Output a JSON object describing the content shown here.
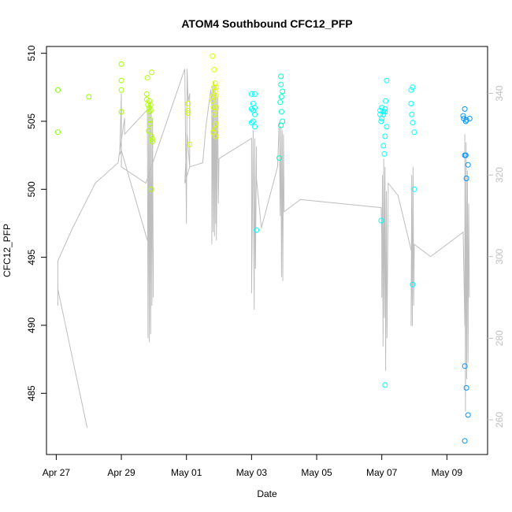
{
  "chart_data": {
    "type": "scatter",
    "title": "ATOM4 Southbound CFC12_PFP",
    "xlabel": "Date",
    "ylabel": "CFC12_PFP",
    "x_tick_labels": [
      "Apr 27",
      "Apr 29",
      "May 01",
      "May 03",
      "May 05",
      "May 07",
      "May 09"
    ],
    "x_tick_days": [
      0,
      2,
      4,
      6,
      8,
      10,
      12
    ],
    "xlim_days": [
      -0.3,
      13.25
    ],
    "y_ticks": [
      485,
      490,
      495,
      500,
      505,
      510
    ],
    "ylim": [
      480.5,
      510.5
    ],
    "y2_ticks": [
      260,
      280,
      300,
      320,
      340
    ],
    "y2lim": [
      251.5,
      351.5
    ],
    "grid": false,
    "legend": "none",
    "series": [
      {
        "kind": "points",
        "points": [
          [
            0.05,
            507.3,
            0.25
          ],
          [
            0.05,
            504.2,
            0.25
          ],
          [
            1.0,
            506.8,
            0.24
          ],
          [
            2.0,
            509.2,
            0.23
          ],
          [
            2.0,
            508.0,
            0.23
          ],
          [
            2.0,
            507.3,
            0.23
          ],
          [
            2.0,
            505.7,
            0.23
          ],
          [
            2.8,
            508.2,
            0.22
          ],
          [
            2.78,
            507.0,
            0.22
          ],
          [
            2.78,
            506.6,
            0.22
          ],
          [
            2.82,
            506.2,
            0.22
          ],
          [
            2.86,
            506.5,
            0.22
          ],
          [
            2.86,
            506.0,
            0.22
          ],
          [
            2.86,
            505.7,
            0.22
          ],
          [
            2.88,
            505.1,
            0.22
          ],
          [
            2.88,
            504.8,
            0.22
          ],
          [
            2.84,
            504.3,
            0.22
          ],
          [
            2.92,
            503.9,
            0.22
          ],
          [
            2.95,
            503.7,
            0.22
          ],
          [
            2.95,
            503.5,
            0.22
          ],
          [
            2.92,
            500.0,
            0.22
          ],
          [
            2.93,
            508.6,
            0.22
          ],
          [
            2.9,
            506.2,
            0.22
          ],
          [
            2.9,
            505.8,
            0.22
          ],
          [
            4.05,
            506.3,
            0.2
          ],
          [
            4.05,
            505.8,
            0.2
          ],
          [
            4.05,
            505.6,
            0.2
          ],
          [
            4.1,
            503.3,
            0.2
          ],
          [
            4.8,
            509.8,
            0.19
          ],
          [
            4.85,
            508.8,
            0.19
          ],
          [
            4.88,
            507.8,
            0.19
          ],
          [
            4.85,
            507.5,
            0.19
          ],
          [
            4.88,
            507.2,
            0.19
          ],
          [
            4.8,
            506.8,
            0.19
          ],
          [
            4.8,
            506.5,
            0.19
          ],
          [
            4.9,
            506.9,
            0.19
          ],
          [
            4.92,
            507.5,
            0.19
          ],
          [
            4.84,
            506.0,
            0.19
          ],
          [
            4.86,
            505.5,
            0.19
          ],
          [
            4.9,
            504.8,
            0.19
          ],
          [
            4.88,
            504.4,
            0.19
          ],
          [
            4.82,
            504.2,
            0.19
          ],
          [
            4.9,
            503.9,
            0.19
          ],
          [
            4.92,
            506.0,
            0.19
          ],
          [
            6.0,
            507.0,
            0.5
          ],
          [
            6.1,
            507.0,
            0.5
          ],
          [
            6.05,
            506.3,
            0.5
          ],
          [
            6.1,
            506.0,
            0.5
          ],
          [
            6.0,
            505.9,
            0.5
          ],
          [
            6.05,
            505.8,
            0.5
          ],
          [
            6.1,
            505.5,
            0.5
          ],
          [
            6.05,
            505.0,
            0.5
          ],
          [
            6.0,
            504.9,
            0.5
          ],
          [
            6.1,
            504.6,
            0.5
          ],
          [
            6.15,
            497.0,
            0.5
          ],
          [
            6.9,
            508.3,
            0.47
          ],
          [
            6.9,
            507.7,
            0.47
          ],
          [
            6.95,
            507.2,
            0.47
          ],
          [
            6.92,
            506.8,
            0.47
          ],
          [
            6.88,
            506.4,
            0.47
          ],
          [
            6.92,
            505.7,
            0.47
          ],
          [
            6.95,
            505.0,
            0.47
          ],
          [
            6.9,
            504.7,
            0.47
          ],
          [
            6.85,
            502.3,
            0.47
          ],
          [
            10.95,
            507.5,
            0.5
          ],
          [
            10.9,
            507.3,
            0.5
          ],
          [
            10.9,
            506.3,
            0.5
          ],
          [
            10.92,
            505.5,
            0.5
          ],
          [
            10.95,
            504.9,
            0.5
          ],
          [
            11.0,
            504.2,
            0.5
          ],
          [
            11.0,
            500.0,
            0.5
          ],
          [
            10.95,
            493.0,
            0.5
          ],
          [
            10.0,
            506.0,
            0.5
          ],
          [
            9.95,
            505.8,
            0.5
          ],
          [
            10.1,
            505.7,
            0.5
          ],
          [
            10.05,
            505.5,
            0.5
          ],
          [
            10.0,
            505.2,
            0.5
          ],
          [
            9.98,
            505.0,
            0.5
          ],
          [
            9.95,
            505.5,
            0.5
          ],
          [
            10.1,
            505.9,
            0.5
          ],
          [
            10.05,
            505.7,
            0.5
          ],
          [
            10.15,
            504.6,
            0.5
          ],
          [
            10.1,
            503.9,
            0.5
          ],
          [
            10.05,
            503.2,
            0.5
          ],
          [
            10.08,
            502.6,
            0.5
          ],
          [
            10.12,
            506.5,
            0.5
          ],
          [
            10.15,
            508.0,
            0.5
          ],
          [
            9.98,
            497.7,
            0.5
          ],
          [
            10.1,
            485.6,
            0.5
          ],
          [
            12.55,
            505.9,
            0.57
          ],
          [
            12.5,
            505.4,
            0.57
          ],
          [
            12.52,
            505.2,
            0.57
          ],
          [
            12.58,
            505.0,
            0.57
          ],
          [
            12.7,
            505.2,
            0.57
          ],
          [
            12.6,
            505.1,
            0.57
          ],
          [
            12.55,
            502.5,
            0.57
          ],
          [
            12.58,
            502.5,
            0.57
          ],
          [
            12.65,
            501.8,
            0.57
          ],
          [
            12.6,
            500.8,
            0.57
          ],
          [
            12.55,
            487.0,
            0.57
          ],
          [
            12.6,
            485.4,
            0.57
          ],
          [
            12.65,
            483.4,
            0.57
          ],
          [
            12.55,
            481.5,
            0.57
          ]
        ]
      },
      {
        "kind": "line",
        "axis": "right",
        "color": "#bebebe",
        "points": [
          [
            0.95,
            258
          ],
          [
            0.5,
            275
          ],
          [
            0.05,
            292
          ],
          [
            0.05,
            288
          ],
          [
            0.05,
            299
          ],
          [
            0.5,
            307
          ],
          [
            1.2,
            318
          ],
          [
            1.9,
            323
          ],
          [
            2.1,
            334
          ],
          [
            2.1,
            330
          ],
          [
            2.8,
            336
          ],
          [
            2.8,
            336
          ],
          [
            2.82,
            280
          ],
          [
            2.84,
            337
          ],
          [
            2.86,
            279
          ],
          [
            2.88,
            338
          ],
          [
            2.9,
            281
          ],
          [
            2.92,
            336
          ],
          [
            2.94,
            288
          ],
          [
            2.96,
            334
          ],
          [
            2.98,
            290
          ],
          [
            2.98,
            302
          ],
          [
            2.8,
            304
          ],
          [
            2.0,
            326
          ],
          [
            1.95,
            325
          ],
          [
            2.0,
            340
          ],
          [
            2.0,
            322
          ],
          [
            2.75,
            318
          ],
          [
            3.95,
            346
          ],
          [
            4.0,
            308
          ],
          [
            4.02,
            346
          ],
          [
            4.05,
            338
          ],
          [
            4.1,
            340
          ],
          [
            4.1,
            322
          ],
          [
            3.95,
            318
          ],
          [
            4.02,
            330
          ],
          [
            4.1,
            322
          ],
          [
            4.5,
            323
          ],
          [
            4.6,
            332
          ],
          [
            4.75,
            341
          ],
          [
            4.78,
            338
          ],
          [
            4.78,
            303
          ],
          [
            4.8,
            342
          ],
          [
            4.82,
            306
          ],
          [
            4.84,
            343
          ],
          [
            4.86,
            305
          ],
          [
            4.88,
            342
          ],
          [
            4.9,
            308
          ],
          [
            4.92,
            340
          ],
          [
            4.92,
            304
          ],
          [
            4.96,
            339
          ],
          [
            4.98,
            313
          ],
          [
            5.0,
            324
          ],
          [
            6.0,
            329
          ],
          [
            6.0,
            291
          ],
          [
            6.05,
            331
          ],
          [
            6.08,
            287
          ],
          [
            6.1,
            329
          ],
          [
            6.12,
            297
          ],
          [
            6.15,
            327
          ],
          [
            6.15,
            319
          ],
          [
            6.3,
            307
          ],
          [
            6.8,
            322
          ],
          [
            6.85,
            333
          ],
          [
            6.88,
            310
          ],
          [
            6.9,
            332
          ],
          [
            6.92,
            295
          ],
          [
            6.94,
            331
          ],
          [
            6.96,
            294
          ],
          [
            6.98,
            330
          ],
          [
            7.0,
            311
          ],
          [
            7.5,
            314
          ],
          [
            9.98,
            312
          ],
          [
            10.0,
            305
          ],
          [
            10.0,
            290
          ],
          [
            10.02,
            320
          ],
          [
            10.04,
            278
          ],
          [
            10.06,
            324
          ],
          [
            10.08,
            285
          ],
          [
            10.1,
            322
          ],
          [
            10.12,
            272
          ],
          [
            10.14,
            316
          ],
          [
            10.16,
            280
          ],
          [
            10.2,
            318
          ],
          [
            10.5,
            315
          ],
          [
            10.92,
            301
          ],
          [
            10.9,
            283
          ],
          [
            10.92,
            320
          ],
          [
            10.94,
            283
          ],
          [
            10.96,
            322
          ],
          [
            10.98,
            288
          ],
          [
            11.0,
            303
          ],
          [
            11.5,
            300
          ],
          [
            12.5,
            306
          ],
          [
            12.55,
            283
          ],
          [
            12.55,
            330
          ],
          [
            12.57,
            262
          ],
          [
            12.59,
            328
          ],
          [
            12.61,
            270
          ],
          [
            12.63,
            321
          ],
          [
            12.65,
            274
          ],
          [
            12.67,
            313
          ],
          [
            12.69,
            290
          ]
        ]
      }
    ]
  }
}
